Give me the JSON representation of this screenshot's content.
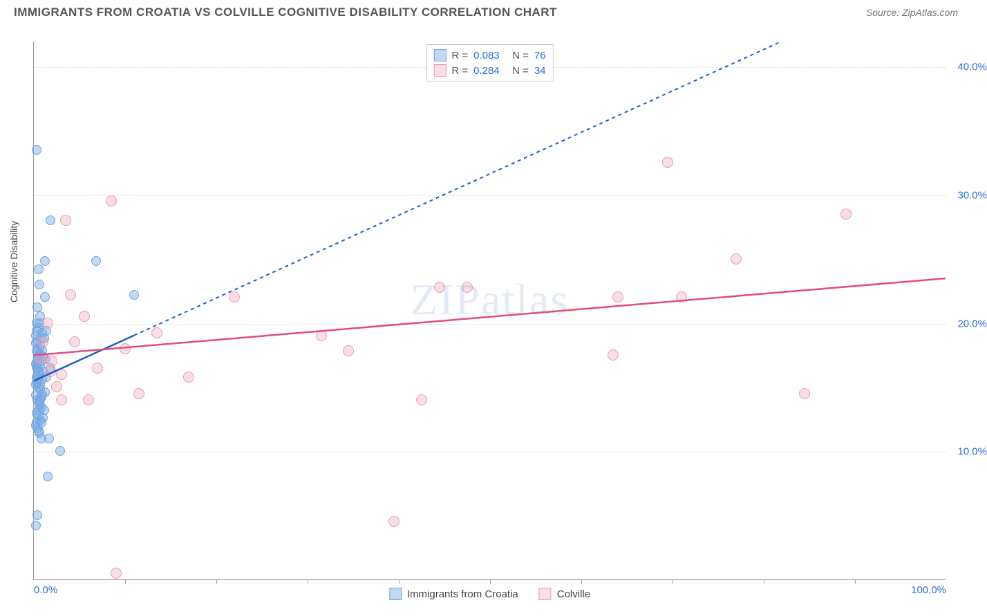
{
  "header": {
    "title": "IMMIGRANTS FROM CROATIA VS COLVILLE COGNITIVE DISABILITY CORRELATION CHART",
    "source_label": "Source: ZipAtlas.com"
  },
  "chart": {
    "type": "scatter",
    "ylabel": "Cognitive Disability",
    "xlim": [
      0,
      100
    ],
    "ylim": [
      0,
      42
    ],
    "xtick_labels": [
      "0.0%",
      "100.0%"
    ],
    "xtick_positions": [
      0,
      100
    ],
    "xtick_minor_positions": [
      10,
      20,
      30,
      40,
      50,
      60,
      70,
      80,
      90
    ],
    "ytick_labels": [
      "10.0%",
      "20.0%",
      "30.0%",
      "40.0%"
    ],
    "ytick_positions": [
      10,
      20,
      30,
      40
    ],
    "background_color": "#ffffff",
    "grid_color": "#dddddd",
    "axis_color": "#999999",
    "tick_label_color": "#2d6fd6",
    "watermark": "ZIPatlas",
    "series": [
      {
        "id": "croatia",
        "label": "Immigrants from Croatia",
        "marker_fill": "rgba(120,170,230,0.45)",
        "marker_stroke": "#6fa3dd",
        "marker_radius": 7,
        "line_color": "#1b5fc1",
        "line_dash": "5,5",
        "trend": {
          "x1": 0,
          "y1": 15.5,
          "x2": 82,
          "y2": 42,
          "solid_until_x": 11
        },
        "R": "0.083",
        "N": "76",
        "points": [
          [
            0.3,
            33.5
          ],
          [
            0.2,
            4.2
          ],
          [
            0.4,
            5.0
          ],
          [
            1.8,
            28.0
          ],
          [
            1.2,
            24.8
          ],
          [
            0.5,
            24.2
          ],
          [
            6.8,
            24.8
          ],
          [
            0.6,
            23.0
          ],
          [
            1.2,
            22.0
          ],
          [
            0.4,
            21.2
          ],
          [
            0.7,
            20.5
          ],
          [
            0.3,
            20.0
          ],
          [
            0.5,
            19.6
          ],
          [
            0.9,
            19.2
          ],
          [
            0.2,
            19.0
          ],
          [
            0.4,
            18.6
          ],
          [
            0.7,
            18.2
          ],
          [
            0.3,
            17.8
          ],
          [
            0.5,
            17.4
          ],
          [
            0.8,
            17.0
          ],
          [
            0.2,
            16.8
          ],
          [
            0.4,
            16.4
          ],
          [
            0.6,
            16.0
          ],
          [
            0.9,
            15.6
          ],
          [
            0.3,
            15.4
          ],
          [
            0.5,
            15.0
          ],
          [
            0.7,
            14.8
          ],
          [
            0.2,
            14.4
          ],
          [
            0.4,
            14.0
          ],
          [
            0.6,
            13.8
          ],
          [
            0.8,
            13.4
          ],
          [
            0.3,
            13.0
          ],
          [
            0.5,
            12.8
          ],
          [
            0.7,
            12.4
          ],
          [
            0.2,
            12.0
          ],
          [
            0.4,
            11.8
          ],
          [
            0.6,
            11.4
          ],
          [
            0.8,
            11.0
          ],
          [
            1.7,
            11.0
          ],
          [
            2.9,
            10.0
          ],
          [
            1.5,
            8.0
          ],
          [
            11.0,
            22.2
          ],
          [
            0.6,
            17.6
          ],
          [
            1.0,
            16.2
          ],
          [
            0.3,
            16.6
          ],
          [
            1.4,
            15.8
          ],
          [
            0.8,
            14.2
          ],
          [
            1.1,
            13.2
          ],
          [
            0.5,
            18.0
          ],
          [
            1.8,
            16.5
          ],
          [
            0.3,
            15.8
          ],
          [
            0.7,
            15.2
          ],
          [
            1.2,
            14.6
          ],
          [
            0.4,
            15.6
          ],
          [
            0.9,
            14.4
          ],
          [
            0.6,
            13.6
          ],
          [
            1.0,
            12.6
          ],
          [
            0.3,
            12.2
          ],
          [
            0.5,
            11.6
          ],
          [
            0.8,
            12.2
          ],
          [
            1.3,
            17.2
          ],
          [
            0.4,
            17.0
          ],
          [
            0.2,
            18.4
          ],
          [
            0.7,
            16.6
          ],
          [
            1.1,
            18.8
          ],
          [
            0.5,
            16.2
          ],
          [
            0.9,
            17.8
          ],
          [
            1.4,
            19.4
          ],
          [
            0.6,
            20.0
          ],
          [
            0.3,
            19.4
          ],
          [
            0.8,
            18.8
          ],
          [
            1.0,
            17.4
          ],
          [
            0.4,
            16.8
          ],
          [
            0.2,
            15.2
          ],
          [
            0.7,
            14.0
          ],
          [
            0.5,
            13.2
          ]
        ]
      },
      {
        "id": "colville",
        "label": "Colville",
        "marker_fill": "rgba(240,160,185,0.35)",
        "marker_stroke": "#e89ab2",
        "marker_radius": 8,
        "line_color": "#e74a7a",
        "line_dash": "",
        "trend": {
          "x1": 0,
          "y1": 17.5,
          "x2": 100,
          "y2": 23.5,
          "solid_until_x": 100
        },
        "R": "0.284",
        "N": "34",
        "points": [
          [
            3.5,
            28.0
          ],
          [
            8.5,
            29.5
          ],
          [
            69.5,
            32.5
          ],
          [
            89.0,
            28.5
          ],
          [
            77.0,
            25.0
          ],
          [
            71.0,
            22.0
          ],
          [
            64.0,
            22.0
          ],
          [
            47.5,
            22.8
          ],
          [
            44.5,
            22.8
          ],
          [
            31.5,
            19.0
          ],
          [
            34.5,
            17.8
          ],
          [
            42.5,
            14.0
          ],
          [
            22.0,
            22.0
          ],
          [
            17.0,
            15.8
          ],
          [
            11.5,
            14.5
          ],
          [
            6.0,
            14.0
          ],
          [
            3.0,
            14.0
          ],
          [
            9.0,
            0.5
          ],
          [
            39.5,
            4.5
          ],
          [
            63.5,
            17.5
          ],
          [
            84.5,
            14.5
          ],
          [
            13.5,
            19.2
          ],
          [
            5.5,
            20.5
          ],
          [
            4.0,
            22.2
          ],
          [
            3.0,
            16.0
          ],
          [
            1.5,
            20.0
          ],
          [
            1.0,
            18.5
          ],
          [
            2.0,
            17.0
          ],
          [
            2.5,
            15.0
          ],
          [
            1.8,
            16.2
          ],
          [
            0.8,
            17.2
          ],
          [
            4.5,
            18.5
          ],
          [
            7.0,
            16.5
          ],
          [
            10.0,
            18.0
          ]
        ]
      }
    ],
    "legend_top": {
      "R_label": "R =",
      "N_label": "N =",
      "value_color": "#2d6fd6",
      "text_color": "#555555"
    }
  }
}
